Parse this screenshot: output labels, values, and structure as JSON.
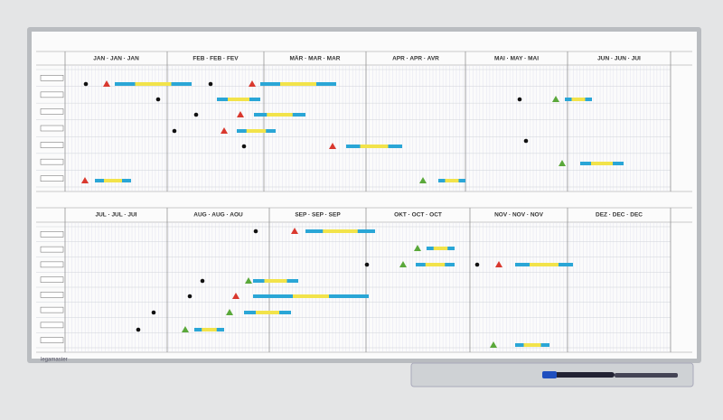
{
  "header_top": {
    "months": [
      "JAN · JAN · JAN",
      "FEB · FEB · FEV",
      "MÄR · MAR · MAR",
      "APR · APR · AVR",
      "MAI · MAY · MAI",
      "JUN · JUN · JUI"
    ]
  },
  "header_bottom": {
    "months": [
      "JUL · JUL · JUI",
      "AUG · AUG · AOU",
      "SEP · SEP · SEP",
      "OKT · OCT · OCT",
      "NOV · NOV · NOV",
      "DEZ · DEC · DEC"
    ]
  },
  "brand": "legamaster"
}
